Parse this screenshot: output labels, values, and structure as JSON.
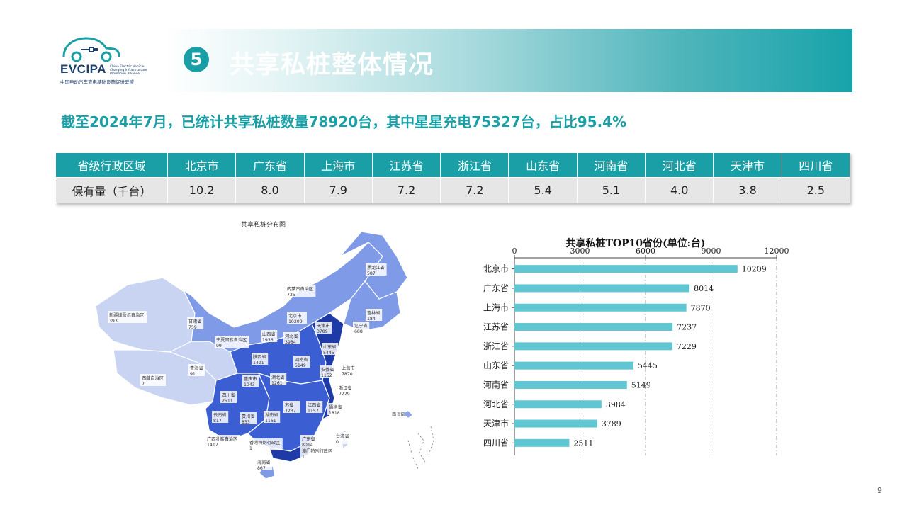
{
  "logo": {
    "brand": "EVCIPA",
    "sub_en": "China Electric Vehicle Charging Infrastructure Promotion Alliance",
    "sub_cn": "中国电动汽车充电基础设施促进联盟"
  },
  "header": {
    "number": "5",
    "title": "共享私桩整体情况"
  },
  "subtitle": "截至2024年7月，已统计共享私桩数量78920台，其中星星充电75327台，占比95.4%",
  "table": {
    "header_label": "省级行政区域",
    "value_label": "保有量（千台）",
    "provinces": [
      "北京市",
      "广东省",
      "上海市",
      "江苏省",
      "浙江省",
      "山东省",
      "河南省",
      "河北省",
      "天津市",
      "四川省"
    ],
    "values": [
      "10.2",
      "8.0",
      "7.9",
      "7.2",
      "7.2",
      "5.4",
      "5.1",
      "4.0",
      "3.8",
      "2.5"
    ]
  },
  "map": {
    "title": "共享私桩分布图",
    "colors": {
      "low": "#c9d4f3",
      "mid": "#7f9ae6",
      "high": "#3b5fd3",
      "top": "#1d3aa6"
    },
    "labels": [
      {
        "name": "黑龙江省",
        "value": "587"
      },
      {
        "name": "吉林省",
        "value": "184"
      },
      {
        "name": "辽宁省",
        "value": "688"
      },
      {
        "name": "内蒙古自治区",
        "value": "735"
      },
      {
        "name": "新疆维吾尔自治区",
        "value": "393"
      },
      {
        "name": "甘肃省",
        "value": "759"
      },
      {
        "name": "宁夏回族自治区",
        "value": "99"
      },
      {
        "name": "山西省",
        "value": "1936"
      },
      {
        "name": "北京市",
        "value": "10209"
      },
      {
        "name": "河北省",
        "value": "3984"
      },
      {
        "name": "天津市",
        "value": "3789"
      },
      {
        "name": "山东省",
        "value": "5445"
      },
      {
        "name": "青海省",
        "value": "91"
      },
      {
        "name": "陕西省",
        "value": "1491"
      },
      {
        "name": "河南省",
        "value": "5149"
      },
      {
        "name": "西藏自治区",
        "value": "7"
      },
      {
        "name": "重庆市",
        "value": "1043"
      },
      {
        "name": "湖北省",
        "value": "1261"
      },
      {
        "name": "安徽省",
        "value": "1152"
      },
      {
        "name": "上海市",
        "value": "7870"
      },
      {
        "name": "四川省",
        "value": "2511"
      },
      {
        "name": "浙江省",
        "value": "7229"
      },
      {
        "name": "苏省",
        "value": "7237"
      },
      {
        "name": "江西省",
        "value": "1157"
      },
      {
        "name": "福建省",
        "value": "1818"
      },
      {
        "name": "云南省",
        "value": "817"
      },
      {
        "name": "贵州省",
        "value": "833"
      },
      {
        "name": "湖南省",
        "value": "1161"
      },
      {
        "name": "广西壮族自治区",
        "value": "1417"
      },
      {
        "name": "广东省",
        "value": "8014"
      },
      {
        "name": "香港特别行政区",
        "value": "1"
      },
      {
        "name": "澳门特别行政区",
        "value": "1"
      },
      {
        "name": "台湾省",
        "value": "0"
      },
      {
        "name": "海南省",
        "value": "867"
      },
      {
        "name": "南海诸岛",
        "value": ""
      }
    ]
  },
  "chart_data": {
    "type": "bar",
    "orientation": "horizontal",
    "title": "共享私桩TOP10省份(单位:台)",
    "categories": [
      "北京市",
      "广东省",
      "上海市",
      "江苏省",
      "浙江省",
      "山东省",
      "河南省",
      "河北省",
      "天津市",
      "四川省"
    ],
    "values": [
      10209,
      8014,
      7870,
      7237,
      7229,
      5445,
      5149,
      3984,
      3789,
      2511
    ],
    "xlim": [
      0,
      12000
    ],
    "xticks": [
      "0",
      "3000",
      "6000",
      "9000",
      "12000"
    ],
    "xaxis_position": "top",
    "grid": true,
    "bar_color": "#5fc6d2"
  },
  "page_number": "9"
}
